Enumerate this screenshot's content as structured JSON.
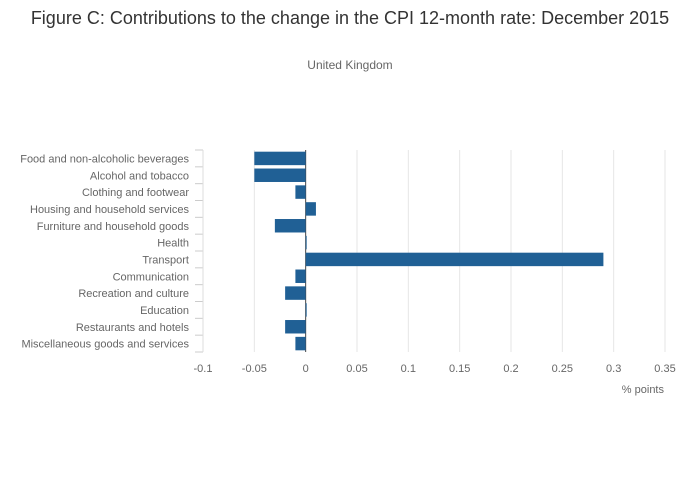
{
  "chart_data": {
    "type": "bar",
    "orientation": "horizontal",
    "title": "Figure C: Contributions to the change in the CPI 12-month rate: December 2015",
    "subtitle": "United Kingdom",
    "xlabel": "% points",
    "ylabel": "",
    "categories": [
      "Food and non-alcoholic beverages",
      "Alcohol and tobacco",
      "Clothing and footwear",
      "Housing and household services",
      "Furniture and household goods",
      "Health",
      "Transport",
      "Communication",
      "Recreation and culture",
      "Education",
      "Restaurants and hotels",
      "Miscellaneous goods and services"
    ],
    "values": [
      -0.05,
      -0.05,
      -0.01,
      0.01,
      -0.03,
      0.0,
      0.29,
      -0.01,
      -0.02,
      0.0,
      -0.02,
      -0.01
    ],
    "xlim": [
      -0.1,
      0.35
    ],
    "xticks": [
      -0.1,
      -0.05,
      0,
      0.05,
      0.1,
      0.15,
      0.2,
      0.25,
      0.3,
      0.35
    ],
    "xtick_labels": [
      "-0.1",
      "-0.05",
      "0",
      "0.05",
      "0.1",
      "0.15",
      "0.2",
      "0.25",
      "0.3",
      "0.35"
    ],
    "grid": "vertical",
    "legend": "none",
    "colors": {
      "bar": "#206095",
      "grid": "#e6e6e6",
      "text": "#666666"
    }
  }
}
